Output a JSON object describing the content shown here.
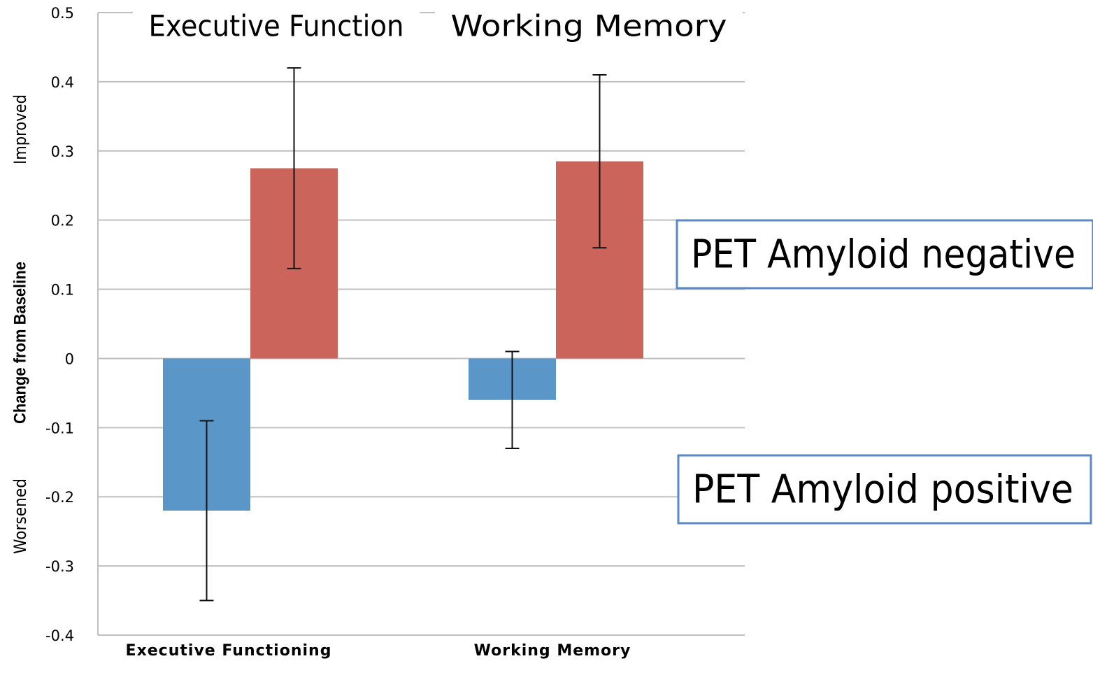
{
  "chart_data": {
    "type": "bar",
    "group_titles": [
      "Executive Function",
      "Working Memory"
    ],
    "ylabel": "Change from Baseline",
    "annotations": [
      "Improved",
      "Worsened"
    ],
    "categories": [
      "Executive Functioning",
      "Working Memory"
    ],
    "series": [
      {
        "name": "PET Amyloid positive",
        "color": "#5b96c8",
        "values": [
          -0.22,
          -0.06
        ],
        "errors": [
          0.13,
          0.07
        ]
      },
      {
        "name": "PET Amyloid negative",
        "color": "#cb645b",
        "values": [
          0.275,
          0.285
        ],
        "errors": [
          0.145,
          0.125
        ]
      }
    ],
    "ylim": [
      -0.4,
      0.5
    ],
    "yticks": [
      -0.4,
      -0.3,
      -0.2,
      -0.1,
      0,
      0.1,
      0.2,
      0.3,
      0.4,
      0.5
    ],
    "grid": true
  }
}
